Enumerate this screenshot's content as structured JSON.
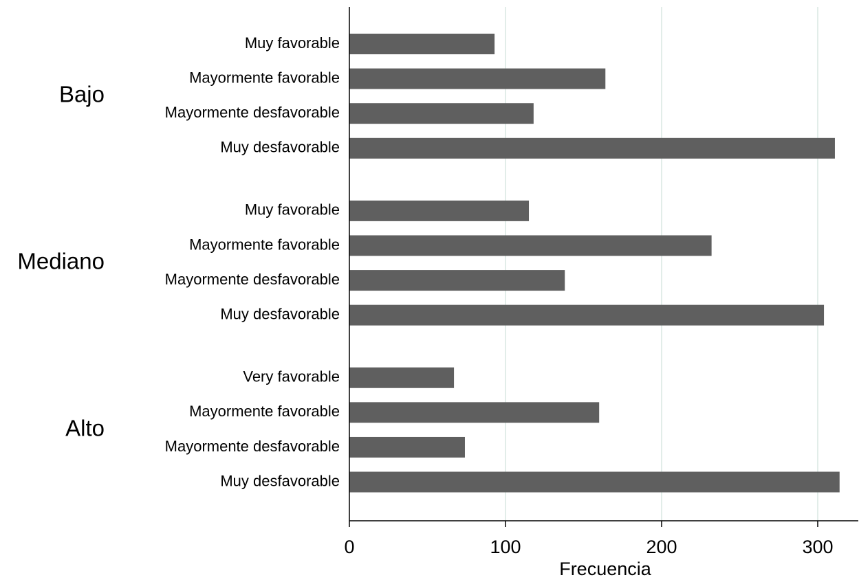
{
  "chart_data": {
    "type": "bar",
    "orientation": "horizontal",
    "groups": [
      {
        "name": "Bajo",
        "categories": [
          "Muy favorable",
          "Mayormente favorable",
          "Mayormente desfavorable",
          "Muy desfavorable"
        ],
        "values": [
          93,
          164,
          118,
          311
        ]
      },
      {
        "name": "Mediano",
        "categories": [
          "Muy favorable",
          "Mayormente favorable",
          "Mayormente desfavorable",
          "Muy desfavorable"
        ],
        "values": [
          115,
          232,
          138,
          304
        ]
      },
      {
        "name": "Alto",
        "categories": [
          "Very favorable",
          "Mayormente favorable",
          "Mayormente desfavorable",
          "Muy desfavorable"
        ],
        "values": [
          67,
          160,
          74,
          314
        ]
      }
    ],
    "color": "#5f5f5f",
    "xlabel": "Frecuencia",
    "xlim": [
      0,
      326
    ],
    "xticks": [
      0,
      100,
      200,
      300
    ],
    "grid": true
  }
}
